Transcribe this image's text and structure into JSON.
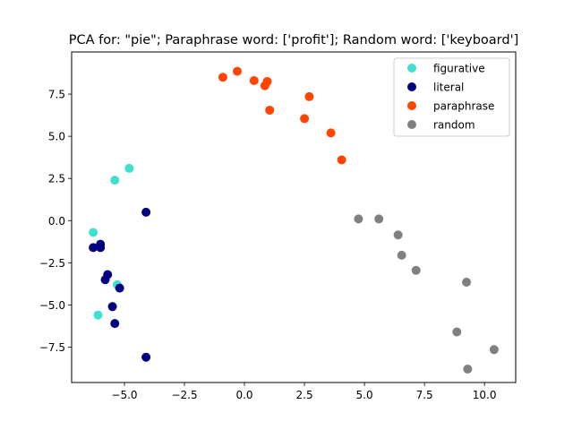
{
  "chart_data": {
    "type": "scatter",
    "title": "PCA for: \"pie\"; Paraphrase word: ['profit']; Random word: ['keyboard']",
    "xlabel": "",
    "ylabel": "",
    "xlim": [
      -7.2,
      11.3
    ],
    "ylim": [
      -9.6,
      10.0
    ],
    "xticks": [
      -5.0,
      -2.5,
      0.0,
      2.5,
      5.0,
      7.5,
      10.0
    ],
    "xtick_labels": [
      "−5.0",
      "−2.5",
      "0.0",
      "2.5",
      "5.0",
      "7.5",
      "10.0"
    ],
    "yticks": [
      -7.5,
      -5.0,
      -2.5,
      0.0,
      2.5,
      5.0,
      7.5
    ],
    "ytick_labels": [
      "−7.5",
      "−5.0",
      "−2.5",
      "0.0",
      "2.5",
      "5.0",
      "7.5"
    ],
    "grid": false,
    "legend_position": "top-right",
    "series": [
      {
        "name": "figurative",
        "color": "#40e0d0",
        "points": [
          [
            -4.8,
            3.1
          ],
          [
            -5.4,
            2.4
          ],
          [
            -6.3,
            -0.7
          ],
          [
            -5.3,
            -3.8
          ],
          [
            -6.1,
            -5.6
          ]
        ]
      },
      {
        "name": "literal",
        "color": "#000080",
        "points": [
          [
            -4.1,
            0.5
          ],
          [
            -6.3,
            -1.6
          ],
          [
            -6.0,
            -1.4
          ],
          [
            -6.0,
            -1.6
          ],
          [
            -5.7,
            -3.2
          ],
          [
            -5.8,
            -3.5
          ],
          [
            -5.2,
            -4.0
          ],
          [
            -5.5,
            -5.1
          ],
          [
            -5.4,
            -6.1
          ],
          [
            -4.1,
            -8.1
          ]
        ]
      },
      {
        "name": "paraphrase",
        "color": "#ff4500",
        "points": [
          [
            -0.9,
            8.5
          ],
          [
            -0.3,
            8.85
          ],
          [
            0.4,
            8.3
          ],
          [
            0.95,
            8.25
          ],
          [
            0.85,
            8.0
          ],
          [
            2.7,
            7.35
          ],
          [
            1.05,
            6.55
          ],
          [
            2.5,
            6.05
          ],
          [
            3.6,
            5.2
          ],
          [
            4.05,
            3.6
          ]
        ]
      },
      {
        "name": "random",
        "color": "#808080",
        "points": [
          [
            4.75,
            0.1
          ],
          [
            5.6,
            0.1
          ],
          [
            6.4,
            -0.85
          ],
          [
            6.55,
            -2.05
          ],
          [
            7.15,
            -2.95
          ],
          [
            9.25,
            -3.65
          ],
          [
            8.85,
            -6.6
          ],
          [
            10.4,
            -7.65
          ],
          [
            9.3,
            -8.8
          ]
        ]
      }
    ]
  }
}
